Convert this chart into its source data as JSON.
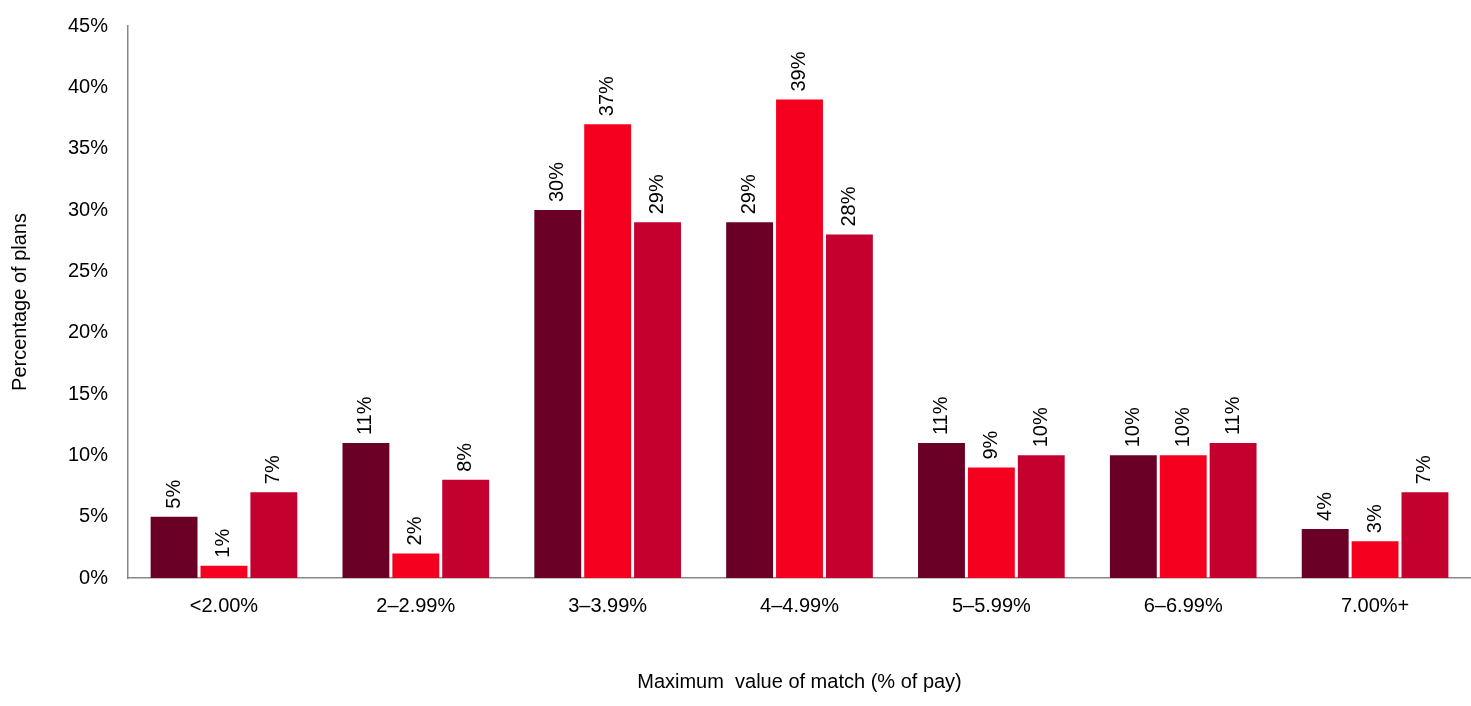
{
  "chart_data": {
    "type": "bar",
    "xlabel": "Maximum  value of match (% of pay)",
    "ylabel": "Percentage of plans",
    "categories": [
      "<2.00%",
      "2–2.99%",
      "3–3.99%",
      "4–4.99%",
      "5–5.99%",
      "6–6.99%",
      "7.00%+"
    ],
    "series": [
      {
        "color": "#6b0026",
        "values": [
          5,
          11,
          30,
          29,
          11,
          10,
          4
        ],
        "value_labels": [
          "5%",
          "11%",
          "30%",
          "29%",
          "11%",
          "10%",
          "4%"
        ]
      },
      {
        "color": "#f5001e",
        "values": [
          1,
          2,
          37,
          39,
          9,
          10,
          3
        ],
        "value_labels": [
          "1%",
          "2%",
          "37%",
          "39%",
          "9%",
          "10%",
          "3%"
        ]
      },
      {
        "color": "#c4002f",
        "values": [
          7,
          8,
          29,
          28,
          10,
          11,
          7
        ],
        "value_labels": [
          "7%",
          "8%",
          "29%",
          "28%",
          "10%",
          "11%",
          "7%"
        ]
      }
    ],
    "ylim": [
      0,
      45
    ],
    "yticks": [
      {
        "value": 0,
        "label": "0%"
      },
      {
        "value": 5,
        "label": "5%"
      },
      {
        "value": 10,
        "label": "10%"
      },
      {
        "value": 15,
        "label": "15%"
      },
      {
        "value": 20,
        "label": "20%"
      },
      {
        "value": 25,
        "label": "25%"
      },
      {
        "value": 30,
        "label": "30%"
      },
      {
        "value": 35,
        "label": "35%"
      },
      {
        "value": 40,
        "label": "40%"
      },
      {
        "value": 45,
        "label": "45%"
      }
    ],
    "grid": false,
    "legend": false
  }
}
